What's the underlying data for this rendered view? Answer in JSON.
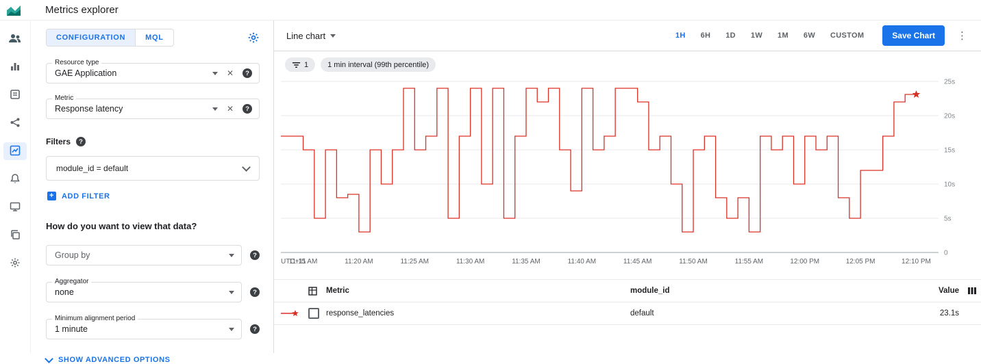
{
  "colors": {
    "accent": "#1a73e8",
    "line": "#d93025",
    "grid": "#e8eaed",
    "text_gray": "#5f6368"
  },
  "topbar": {
    "title": "Metrics explorer"
  },
  "rail": {
    "items": [
      "monitoring-overview",
      "dashboards",
      "services",
      "integrations",
      "metrics-explorer",
      "alerting",
      "uptime-checks",
      "groups",
      "settings"
    ],
    "active": "metrics-explorer"
  },
  "config": {
    "tabs": {
      "configuration": "CONFIGURATION",
      "mql": "MQL"
    },
    "resource_type": {
      "label": "Resource type",
      "value": "GAE Application"
    },
    "metric": {
      "label": "Metric",
      "value": "Response latency"
    },
    "filters": {
      "label": "Filters",
      "value": "module_id = default"
    },
    "add_filter_label": "ADD FILTER",
    "view_question": "How do you want to view that data?",
    "group_by": {
      "placeholder": "Group by"
    },
    "aggregator": {
      "label": "Aggregator",
      "value": "none"
    },
    "alignment_period": {
      "label": "Minimum alignment period",
      "value": "1 minute"
    },
    "advanced_label": "SHOW ADVANCED OPTIONS"
  },
  "toolbar": {
    "chart_type": "Line chart",
    "ranges": [
      "1H",
      "6H",
      "1D",
      "1W",
      "1M",
      "6W",
      "CUSTOM"
    ],
    "active_range": "1H",
    "save_label": "Save Chart"
  },
  "chips": {
    "filter_count": "1",
    "interval": "1 min interval (99th percentile)"
  },
  "chart_data": {
    "type": "line",
    "style": "step-after",
    "unit": "s",
    "ylim": [
      0,
      25
    ],
    "y_ticks": [
      {
        "v": 25,
        "label": "25s"
      },
      {
        "v": 20,
        "label": "20s"
      },
      {
        "v": 15,
        "label": "15s"
      },
      {
        "v": 10,
        "label": "10s"
      },
      {
        "v": 5,
        "label": "5s"
      },
      {
        "v": 0,
        "label": "0"
      }
    ],
    "x_domain": 59,
    "x_ticks": [
      {
        "i": 0,
        "label": "UTC+11"
      },
      {
        "i": 2,
        "label": "11:15 AM"
      },
      {
        "i": 7,
        "label": "11:20 AM"
      },
      {
        "i": 12,
        "label": "11:25 AM"
      },
      {
        "i": 17,
        "label": "11:30 AM"
      },
      {
        "i": 22,
        "label": "11:35 AM"
      },
      {
        "i": 27,
        "label": "11:40 AM"
      },
      {
        "i": 32,
        "label": "11:45 AM"
      },
      {
        "i": 37,
        "label": "11:50 AM"
      },
      {
        "i": 42,
        "label": "11:55 AM"
      },
      {
        "i": 47,
        "label": "12:00 PM"
      },
      {
        "i": 52,
        "label": "12:05 PM"
      },
      {
        "i": 57,
        "label": "12:10 PM"
      }
    ],
    "series": [
      {
        "name": "response_latencies",
        "color": "#d93025",
        "end_marker": "star",
        "values": [
          17,
          17,
          15,
          5,
          15,
          8,
          8.5,
          3,
          15,
          10,
          15,
          24,
          15,
          17,
          24,
          5,
          17,
          24,
          10,
          24,
          5,
          17,
          24,
          22,
          24,
          15,
          9,
          24,
          15,
          17,
          24,
          24,
          22,
          15,
          17,
          10,
          3,
          15,
          17,
          8,
          5,
          8,
          3,
          17,
          15,
          17,
          10,
          17,
          15,
          17,
          8,
          5,
          12,
          12,
          17,
          22,
          23.1,
          23.1
        ]
      }
    ]
  },
  "table": {
    "headers": {
      "metric": "Metric",
      "module_id": "module_id",
      "value": "Value"
    },
    "rows": [
      {
        "metric": "response_latencies",
        "module_id": "default",
        "value": "23.1s"
      }
    ]
  }
}
